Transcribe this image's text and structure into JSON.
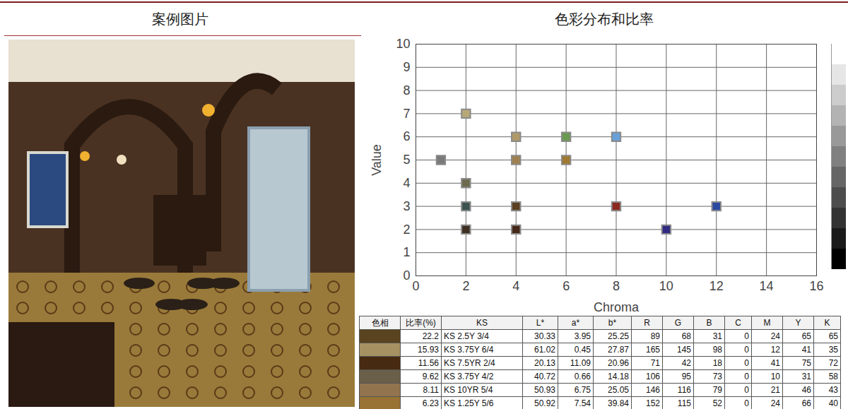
{
  "panels": [
    "案例图片",
    "色彩分布和比率"
  ],
  "chart_data": {
    "type": "scatter",
    "x_label": "Chroma",
    "y_label": "Value",
    "x": [
      1,
      2,
      2,
      2,
      2,
      4,
      4,
      4,
      4,
      6,
      6,
      8,
      8,
      10,
      12
    ],
    "values": [
      5,
      7,
      4,
      3,
      2,
      6,
      5,
      3,
      2,
      6,
      5,
      6,
      3,
      2,
      3
    ],
    "colors": [
      "#7a7a7a",
      "#b7a878",
      "#6e6a4e",
      "#3d5350",
      "#3e3020",
      "#b09a6a",
      "#a08050",
      "#5a4020",
      "#452818",
      "#6a9a50",
      "#a07830",
      "#6aa0d8",
      "#8a2a20",
      "#302a80",
      "#2a48a0"
    ],
    "marker": "square",
    "xlim": [
      0,
      16
    ],
    "xticks": [
      0,
      2,
      4,
      6,
      8,
      10,
      12,
      14,
      16
    ],
    "ylim": [
      0,
      10
    ],
    "yticks": [
      0,
      1,
      2,
      3,
      4,
      5,
      6,
      7,
      8,
      9,
      10
    ],
    "grid": true
  },
  "table": {
    "columns": [
      "色相",
      "比率(%)",
      "KS",
      "L*",
      "a*",
      "b*",
      "R",
      "G",
      "B",
      "C",
      "M",
      "Y",
      "K"
    ],
    "rows": [
      {
        "swatch": "#59441f",
        "cells": [
          "22.2",
          "KS 2.5Y 3/4",
          "30.33",
          "3.95",
          "25.25",
          "89",
          "68",
          "31",
          "0",
          "24",
          "65",
          "65"
        ]
      },
      {
        "swatch": "#a59162",
        "cells": [
          "15.93",
          "KS 3.75Y 6/4",
          "61.02",
          "0.45",
          "27.87",
          "165",
          "145",
          "98",
          "0",
          "12",
          "41",
          "35"
        ]
      },
      {
        "swatch": "#472a12",
        "cells": [
          "11.56",
          "KS 7.5YR 2/4",
          "20.13",
          "11.09",
          "20.96",
          "71",
          "42",
          "18",
          "0",
          "41",
          "75",
          "72"
        ]
      },
      {
        "swatch": "#6a5f49",
        "cells": [
          "9.62",
          "KS 3.75Y 4/2",
          "40.72",
          "0.66",
          "14.18",
          "106",
          "95",
          "73",
          "0",
          "10",
          "31",
          "58"
        ]
      },
      {
        "swatch": "#92744f",
        "cells": [
          "8.11",
          "KS 10YR 5/4",
          "50.93",
          "6.75",
          "25.05",
          "146",
          "116",
          "79",
          "0",
          "21",
          "46",
          "43"
        ]
      },
      {
        "swatch": "#987334",
        "cells": [
          "6.23",
          "KS 1.25Y 5/6",
          "50.92",
          "7.54",
          "39.84",
          "152",
          "115",
          "52",
          "0",
          "24",
          "66",
          "40"
        ]
      }
    ]
  }
}
